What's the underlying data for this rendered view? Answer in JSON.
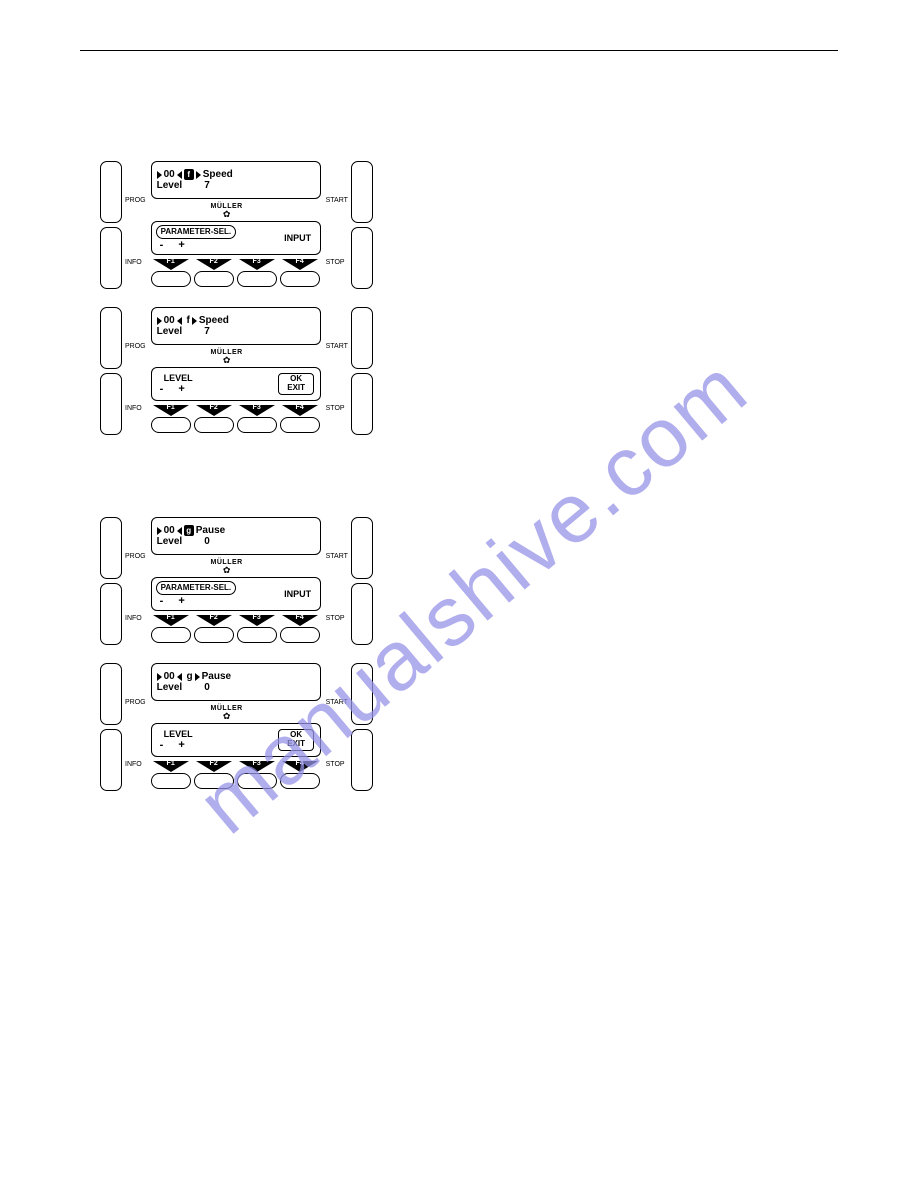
{
  "watermark": "manualshive.com",
  "labels": {
    "prog": "PROG",
    "info": "INFO",
    "start": "START",
    "stop": "STOP"
  },
  "brand": "MÜLLER",
  "fkeys": [
    "F1",
    "F2",
    "F3",
    "F4"
  ],
  "panels": [
    {
      "top": {
        "prefix": "00",
        "code": "f",
        "codeInverted": true,
        "triAfter": true,
        "title": "Speed",
        "l2a": "Level",
        "l2b": "7"
      },
      "bottom": {
        "mode": "paramsel",
        "left": "PARAMETER-SEL.",
        "right": "INPUT"
      }
    },
    {
      "top": {
        "prefix": "00",
        "code": "f",
        "codeInverted": false,
        "triAfter": true,
        "title": "Speed",
        "l2a": "Level",
        "l2b": "7"
      },
      "bottom": {
        "mode": "level",
        "left": "LEVEL",
        "ok": "OK",
        "exit": "EXIT"
      }
    },
    {
      "top": {
        "prefix": "00",
        "code": "g",
        "codeInverted": true,
        "triAfter": false,
        "title": "Pause",
        "l2a": "Level",
        "l2b": "0"
      },
      "bottom": {
        "mode": "paramsel",
        "left": "PARAMETER-SEL.",
        "right": "INPUT"
      }
    },
    {
      "top": {
        "prefix": "00",
        "code": "g",
        "codeInverted": false,
        "triAfter": true,
        "title": "Pause",
        "l2a": "Level",
        "l2b": "0"
      },
      "bottom": {
        "mode": "level",
        "left": "LEVEL",
        "ok": "OK",
        "exit": "EXIT"
      }
    }
  ]
}
